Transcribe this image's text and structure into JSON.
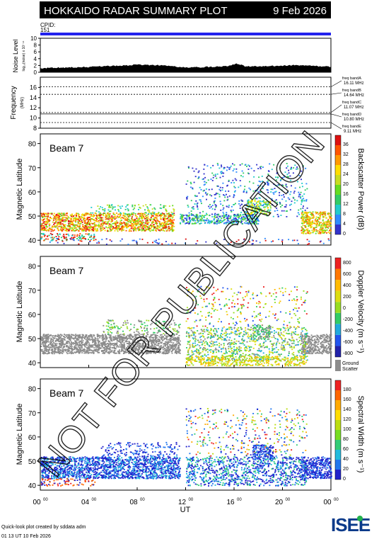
{
  "header": {
    "title": "HOKKAIDO RADAR SUMMARY PLOT",
    "date": "9 Feb 2026",
    "bg_color": "#000000",
    "fg_color": "#ffffff"
  },
  "cpid": {
    "label": "CPID:",
    "value": "151",
    "bar_color": "#2222ee"
  },
  "noise_panel": {
    "ylabel": "Noise Level",
    "ylabel_sub": "log₁₀(noise) x 10⁻¹⁴",
    "ylim": [
      0,
      10
    ],
    "ticks": [
      "0",
      "2",
      "4",
      "6",
      "8",
      "10"
    ]
  },
  "freq_panel": {
    "ylabel": "Frequency",
    "ylabel_unit": "(MHz)",
    "ylim": [
      8,
      18
    ],
    "ticks": [
      "8",
      "10",
      "12",
      "14",
      "16"
    ],
    "bands": [
      {
        "label": "freq bandA",
        "value": "16.11 MHz",
        "mhz": 16.11
      },
      {
        "label": "freq bandB",
        "value": "14.64 MHz",
        "mhz": 14.64
      },
      {
        "label": "freq bandC",
        "value": "11.07 MHz",
        "mhz": 11.07
      },
      {
        "label": "freq bandD",
        "value": "10.80 MHz",
        "mhz": 10.8
      },
      {
        "label": "freq bandE",
        "value": "9.11 MHz",
        "mhz": 9.11
      }
    ]
  },
  "panels": [
    {
      "id": "power",
      "beam": "Beam  7",
      "ylabel": "Magnetic Latitude",
      "cbar_label": "Backscatter Power (dB)",
      "cbar_ticks": [
        "0",
        "4",
        "8",
        "12",
        "16",
        "20",
        "24",
        "28",
        "32",
        "36"
      ],
      "cbar_colors": [
        "#3333cc",
        "#2e8bff",
        "#22cccc",
        "#33cc66",
        "#66dd22",
        "#c8dd22",
        "#ffdd00",
        "#ff9900",
        "#ff5500",
        "#dd1111"
      ]
    },
    {
      "id": "velocity",
      "beam": "Beam  7",
      "ylabel": "Magnetic Latitude",
      "cbar_label": "Doppler Velocity (m s⁻¹)",
      "cbar_ticks": [
        "800",
        "600",
        "400",
        "200",
        "0",
        "-200",
        "-400",
        "-600",
        "-800"
      ],
      "cbar_colors": [
        "#2222aa",
        "#2255ee",
        "#22aadd",
        "#33cc66",
        "#99dd22",
        "#dddd11",
        "#ffbb00",
        "#ff7700",
        "#ee2222"
      ],
      "ground_label": "Ground",
      "ground_label2": "Scatter",
      "ground_color": "#8c8c8c"
    },
    {
      "id": "width",
      "beam": "Beam  7",
      "ylabel": "Magnetic Latitude",
      "cbar_label": "Spectral Width (m s⁻¹)",
      "cbar_ticks": [
        "0",
        "20",
        "40",
        "60",
        "80",
        "100",
        "120",
        "140",
        "160",
        "180"
      ],
      "cbar_colors": [
        "#2222cc",
        "#2277ee",
        "#22bbdd",
        "#33cc77",
        "#77dd22",
        "#bbdd11",
        "#ffdd00",
        "#ffaa00",
        "#ff6600",
        "#ee2222"
      ]
    }
  ],
  "x_axis": {
    "label": "UT",
    "ticks": [
      {
        "hour": "00",
        "sup": "00",
        "h": 0
      },
      {
        "hour": "04",
        "sup": "00",
        "h": 4
      },
      {
        "hour": "08",
        "sup": "00",
        "h": 8
      },
      {
        "hour": "12",
        "sup": "00",
        "h": 12
      },
      {
        "hour": "16",
        "sup": "00",
        "h": 16
      },
      {
        "hour": "20",
        "sup": "00",
        "h": 20
      },
      {
        "hour": "00",
        "sup": "00",
        "h": 24
      }
    ]
  },
  "watermark": "NOT FOR PUBLICATION",
  "footer": {
    "credit": "Quick-look plot created by sddata adm",
    "timestamp": "01 13 UT 10 Feb 2026",
    "logo_text": "ISEE",
    "logo_colors": [
      "#0a3a8a",
      "#22b14c"
    ]
  },
  "chart_data": [
    {
      "type": "area",
      "title": "Noise Level",
      "ylim": [
        0,
        10
      ],
      "x_unit": "UT hour",
      "x": [
        0,
        2,
        4,
        6,
        8,
        10,
        12,
        14,
        15.5,
        16.2,
        17,
        19,
        21,
        22.5,
        24
      ],
      "y": [
        1.0,
        1.2,
        1.4,
        1.7,
        2.0,
        1.9,
        1.2,
        1.4,
        1.7,
        2.4,
        1.5,
        1.6,
        1.9,
        1.7,
        1.4
      ]
    },
    {
      "type": "line",
      "title": "Frequency (MHz)",
      "ylim": [
        8,
        18
      ],
      "series": [
        {
          "name": "freq bandD",
          "x": [
            0,
            24
          ],
          "y": [
            10.8,
            10.8
          ]
        }
      ]
    },
    {
      "type": "heatmap",
      "title": "Backscatter Power (dB)",
      "beam": 7,
      "xlim": [
        0,
        24
      ],
      "ylim": [
        38,
        84
      ],
      "color_range": [
        0,
        36
      ],
      "regions": [
        {
          "t": [
            0,
            11
          ],
          "lat": [
            44,
            52
          ],
          "level": 30
        },
        {
          "t": [
            0,
            4
          ],
          "lat": [
            40,
            43
          ],
          "level": 20
        },
        {
          "t": [
            11.5,
            18
          ],
          "lat": [
            47,
            51
          ],
          "level": 8
        },
        {
          "t": [
            12,
            22
          ],
          "lat": [
            50,
            72
          ],
          "level": 2
        },
        {
          "t": [
            17,
            19
          ],
          "lat": [
            51,
            57
          ],
          "level": 20
        },
        {
          "t": [
            22,
            24
          ],
          "lat": [
            43,
            52
          ],
          "level": 30
        }
      ]
    },
    {
      "type": "heatmap",
      "title": "Doppler Velocity (m s⁻¹)",
      "beam": 7,
      "xlim": [
        0,
        24
      ],
      "ylim": [
        38,
        84
      ],
      "color_range": [
        -800,
        800
      ],
      "ground_scatter_regions": [
        {
          "t": [
            0,
            11.5
          ],
          "lat": [
            44,
            52
          ]
        },
        {
          "t": [
            21.5,
            24
          ],
          "lat": [
            44,
            52
          ]
        }
      ],
      "regions": [
        {
          "t": [
            12,
            22
          ],
          "lat": [
            41,
            70
          ],
          "value": 0
        },
        {
          "t": [
            12,
            22
          ],
          "lat": [
            38,
            43
          ],
          "value": -400
        }
      ]
    },
    {
      "type": "heatmap",
      "title": "Spectral Width (m s⁻¹)",
      "beam": 7,
      "xlim": [
        0,
        24
      ],
      "ylim": [
        38,
        84
      ],
      "color_range": [
        0,
        180
      ],
      "regions": [
        {
          "t": [
            0,
            11.5
          ],
          "lat": [
            43,
            52
          ],
          "value": 10
        },
        {
          "t": [
            12,
            22
          ],
          "lat": [
            40,
            72
          ],
          "value": 20
        },
        {
          "t": [
            21.5,
            24
          ],
          "lat": [
            43,
            52
          ],
          "value": 10
        }
      ]
    }
  ]
}
